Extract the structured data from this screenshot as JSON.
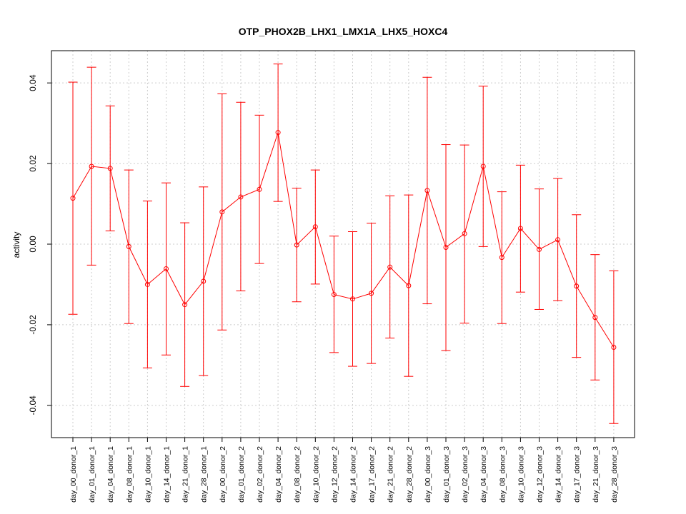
{
  "chart_data": {
    "type": "line",
    "title": "OTP_PHOX2B_LHX1_LMX1A_LHX5_HOXC4",
    "xlabel": "",
    "ylabel": "activity",
    "ylim": [
      -0.048,
      0.048
    ],
    "yticks": [
      -0.04,
      -0.02,
      0.0,
      0.02,
      0.04
    ],
    "ytick_labels": [
      "-0.04",
      "-0.02",
      "0.00",
      "0.02",
      "0.04"
    ],
    "grid": true,
    "color": "#ff0000",
    "categories": [
      "day_00_donor_1",
      "day_01_donor_1",
      "day_04_donor_1",
      "day_08_donor_1",
      "day_10_donor_1",
      "day_14_donor_1",
      "day_21_donor_1",
      "day_28_donor_1",
      "day_00_donor_2",
      "day_01_donor_2",
      "day_02_donor_2",
      "day_04_donor_2",
      "day_08_donor_2",
      "day_10_donor_2",
      "day_12_donor_2",
      "day_14_donor_2",
      "day_17_donor_2",
      "day_21_donor_2",
      "day_28_donor_2",
      "day_00_donor_3",
      "day_01_donor_3",
      "day_02_donor_3",
      "day_04_donor_3",
      "day_08_donor_3",
      "day_10_donor_3",
      "day_12_donor_3",
      "day_14_donor_3",
      "day_17_donor_3",
      "day_21_donor_3",
      "day_28_donor_3"
    ],
    "values": [
      0.0114,
      0.0193,
      0.0188,
      -0.0006,
      -0.01,
      -0.0061,
      -0.015,
      -0.0092,
      0.008,
      0.0117,
      0.0136,
      0.0277,
      -0.0002,
      0.0043,
      -0.0125,
      -0.0136,
      -0.0122,
      -0.0057,
      -0.0103,
      0.0133,
      -0.0008,
      0.0026,
      0.0193,
      -0.0033,
      0.0039,
      -0.0013,
      0.0011,
      -0.0104,
      -0.0182,
      -0.0256
    ],
    "upper": [
      0.0402,
      0.0439,
      0.0343,
      0.0184,
      0.0107,
      0.0152,
      0.0053,
      0.0142,
      0.0373,
      0.0352,
      0.032,
      0.0447,
      0.0139,
      0.0184,
      0.002,
      0.0031,
      0.0052,
      0.012,
      0.0122,
      0.0414,
      0.0247,
      0.0246,
      0.0392,
      0.013,
      0.0196,
      0.0137,
      0.0163,
      0.0073,
      -0.0026,
      -0.0066
    ],
    "lower": [
      -0.0174,
      -0.0052,
      0.0033,
      -0.0197,
      -0.0307,
      -0.0275,
      -0.0353,
      -0.0326,
      -0.0213,
      -0.0116,
      -0.0048,
      0.0106,
      -0.0143,
      -0.0099,
      -0.0269,
      -0.0303,
      -0.0296,
      -0.0233,
      -0.0328,
      -0.0148,
      -0.0264,
      -0.0196,
      -0.0006,
      -0.0197,
      -0.0119,
      -0.0162,
      -0.014,
      -0.0281,
      -0.0337,
      -0.0445
    ]
  }
}
